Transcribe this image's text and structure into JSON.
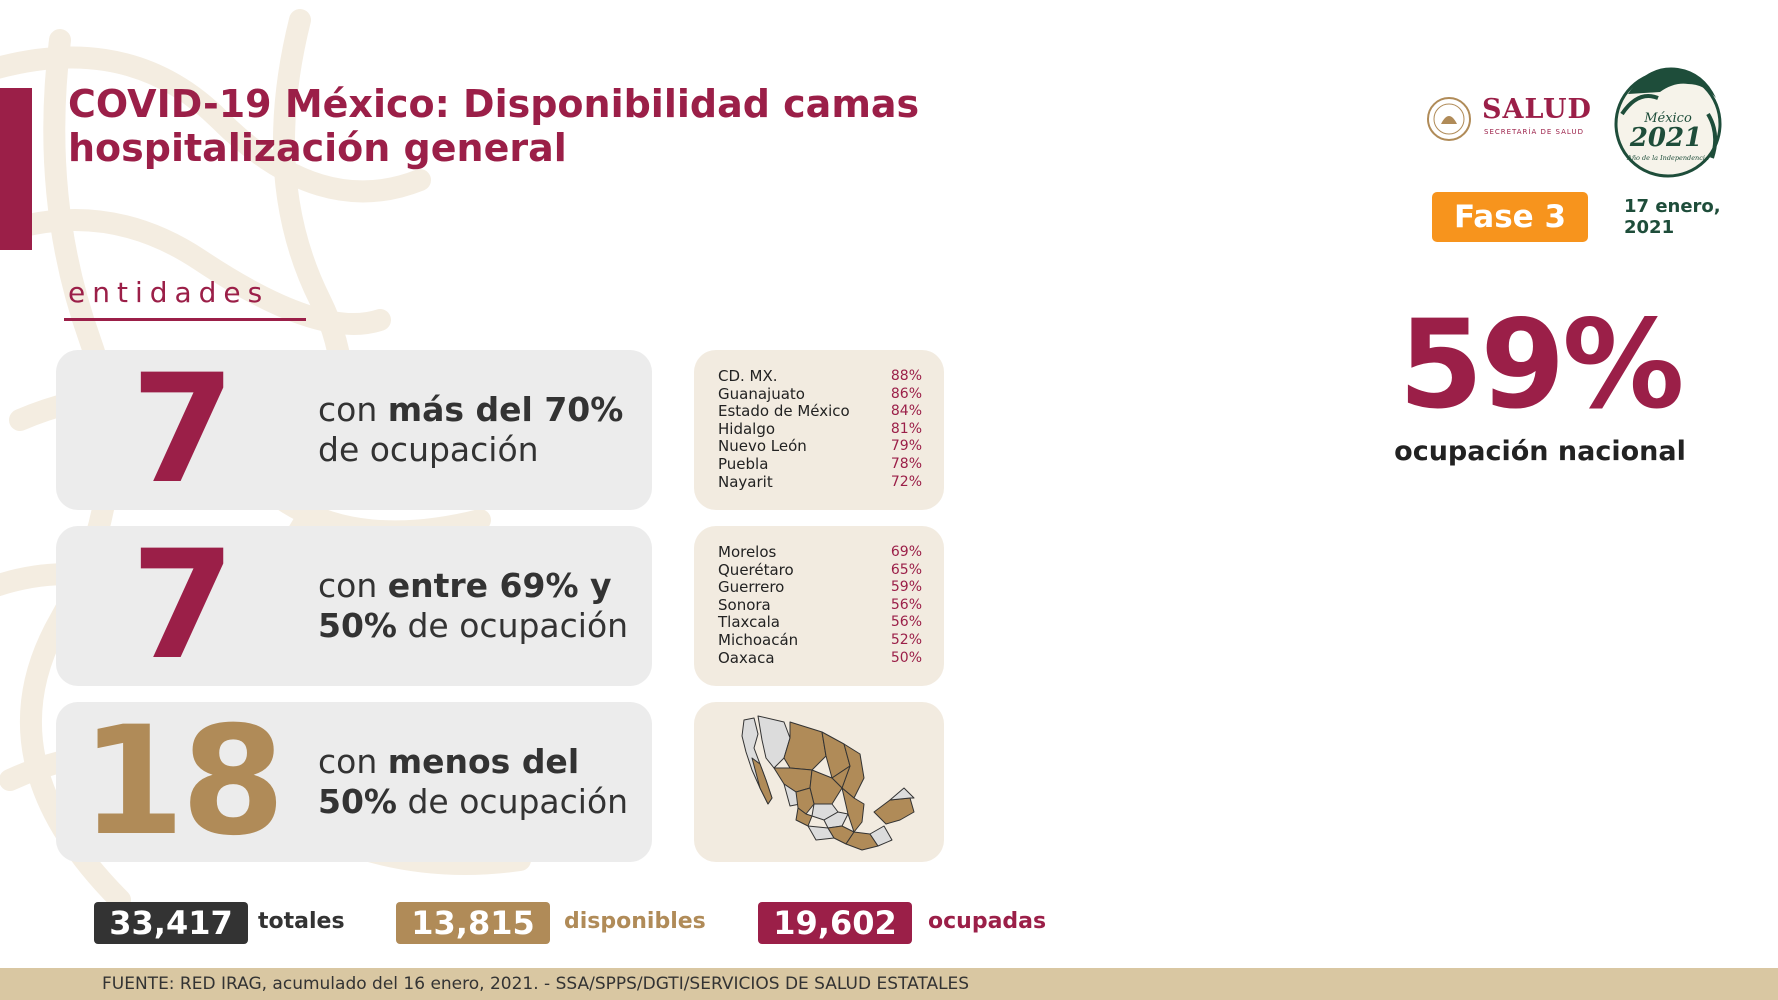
{
  "header": {
    "title_line1": "COVID-19 México: Disponibilidad camas",
    "title_line2": "hospitalización general",
    "subheading": "entidades"
  },
  "logos": {
    "salud_word": "SALUD",
    "salud_sub": "SECRETARÍA DE SALUD",
    "year_logo_line1": "México",
    "year_logo_line2": "2021",
    "year_logo_line3": "Año de la Independencia"
  },
  "phase": {
    "label": "Fase 3"
  },
  "date": {
    "line1": "17 enero,",
    "line2": "2021"
  },
  "national": {
    "value": "59%",
    "label": "ocupación nacional"
  },
  "groups": [
    {
      "count": "7",
      "desc_pre": "con ",
      "desc_bold": "más del 70%",
      "desc_post": "de ocupación"
    },
    {
      "count": "7",
      "desc_pre": "con ",
      "desc_bold": "entre 69% y",
      "desc_bold2": "50%",
      "desc_post": " de ocupación"
    },
    {
      "count": "18",
      "desc_pre": "con ",
      "desc_bold": "menos del",
      "desc_bold2": "50%",
      "desc_post": " de ocupación"
    }
  ],
  "states_high": [
    {
      "name": "CD. MX.",
      "pct": "88%"
    },
    {
      "name": "Guanajuato",
      "pct": "86%"
    },
    {
      "name": "Estado de México",
      "pct": "84%"
    },
    {
      "name": "Hidalgo",
      "pct": "81%"
    },
    {
      "name": "Nuevo León",
      "pct": "79%"
    },
    {
      "name": "Puebla",
      "pct": "78%"
    },
    {
      "name": "Nayarit",
      "pct": "72%"
    }
  ],
  "states_mid": [
    {
      "name": "Morelos",
      "pct": "69%"
    },
    {
      "name": "Querétaro",
      "pct": "65%"
    },
    {
      "name": "Guerrero",
      "pct": "59%"
    },
    {
      "name": "Sonora",
      "pct": "56%"
    },
    {
      "name": "Tlaxcala",
      "pct": "56%"
    },
    {
      "name": "Michoacán",
      "pct": "52%"
    },
    {
      "name": "Oaxaca",
      "pct": "50%"
    }
  ],
  "totals": {
    "total_value": "33,417",
    "total_label": "totales",
    "available_value": "13,815",
    "available_label": "disponibles",
    "occupied_value": "19,602",
    "occupied_label": "ocupadas"
  },
  "footer": {
    "source": "FUENTE: RED IRAG, acumulado del 16 enero, 2021. -  SSA/SPPS/DGTI/SERVICIOS DE SALUD ESTATALES"
  },
  "colors": {
    "primary": "#9b1f48",
    "gold": "#b08b58",
    "dark": "#333333",
    "phase": "#f7941d",
    "footer_band": "#d9c7a2",
    "card_gray": "#ececec",
    "card_beige": "#f2ebe0",
    "date_green": "#1e4d3a"
  },
  "icons": {
    "map": "mexico-map-icon",
    "salud_seal": "government-seal-icon",
    "year_logo": "eagle-serpent-icon"
  }
}
